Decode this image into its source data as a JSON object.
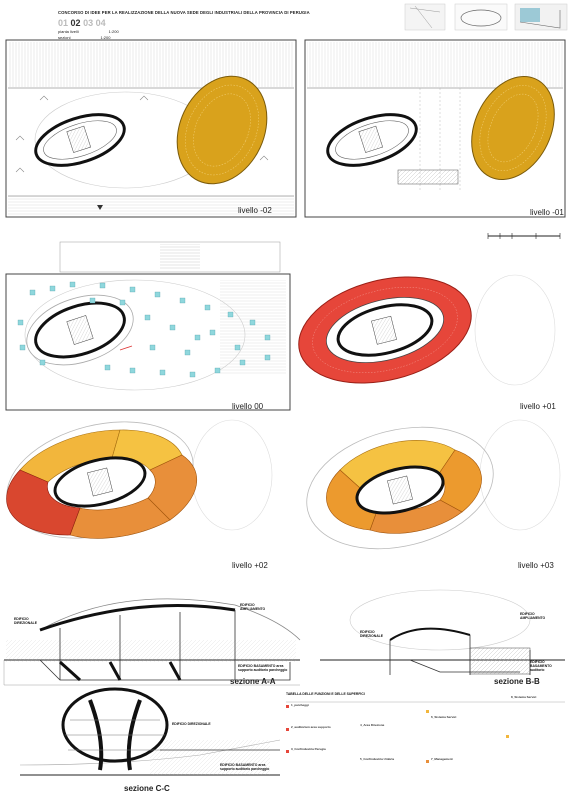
{
  "header": {
    "title": "CONCORSO DI IDEE PER LA REALIZZAZIONE DELLA NUOVA SEDE DEGLI INDUSTRIALI DELLA PROVINCIA DI PERUGIA",
    "board_numbers": [
      "01",
      "02",
      "03",
      "04"
    ],
    "active_board": "02",
    "scales": [
      {
        "label": "pianta livelli",
        "value": "1:200"
      },
      {
        "label": "sezioni",
        "value": "1:200"
      }
    ]
  },
  "plans": {
    "level_m2": "livello -02",
    "level_m1": "livello -01",
    "level_00": "livello 00",
    "level_p1": "livello +01",
    "level_p2": "livello +02",
    "level_p3": "livello +03"
  },
  "sections": {
    "aa": {
      "title": "sezione A-A",
      "labels": [
        "EDIFICIO DIREZIONALE",
        "EDIFICIO AMPLIAMENTO",
        "EDIFICIO BASAMENTO area supporto auditorio parcheggio"
      ]
    },
    "bb": {
      "title": "sezione B-B",
      "labels": [
        "EDIFICIO DIREZIONALE",
        "EDIFICIO AMPLIAMENTO",
        "EDIFICIO BASAMENTO auditorio"
      ]
    },
    "cc": {
      "title": "sezione C-C",
      "labels": [
        "EDIFICIO DIREZIONALE",
        "EDIFICIO BASAMENTO area supporto auditorio parcheggio"
      ]
    }
  },
  "table": {
    "title": "TABELLA DELLE FUNZIONI E DELLE SUPERFICI",
    "groups": [
      "1_parcheggi",
      "2_auditorium area supporto",
      "3_Confindustria Perugia",
      "4_Area Direzione",
      "5_Confindustria Umbria",
      "6_Sistema Servizi",
      "7_Management",
      "8_Sistema Servizi"
    ]
  },
  "colors": {
    "auditorium": "#d9a21c",
    "level_p1": "#e6463a",
    "level_p2_yellow": "#f2b63c",
    "level_p2_orange": "#e88f3a",
    "level_p2_red": "#d9472f",
    "level_p3_orange": "#ec9a2e",
    "level_p3_yellow": "#f5c242",
    "cyan_marks": "#8fd7dd"
  }
}
